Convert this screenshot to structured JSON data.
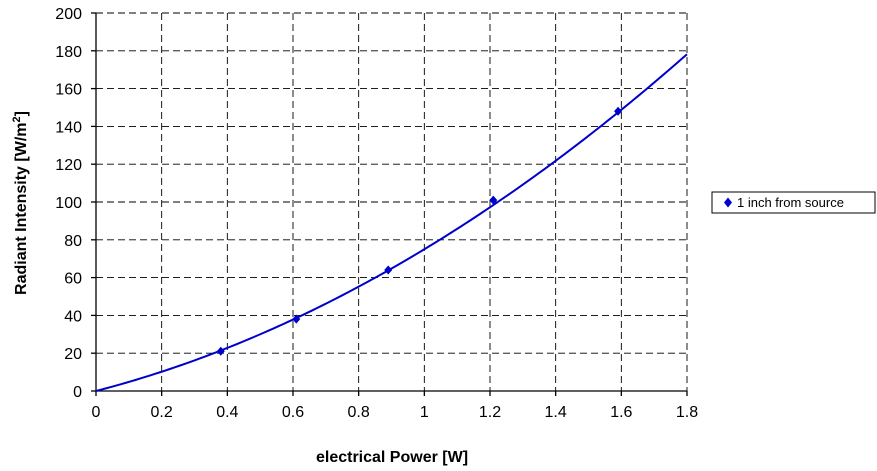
{
  "chart_data": {
    "type": "scatter",
    "xlabel": "electrical Power [W]",
    "ylabel_main": "Radiant Intensity [W/m",
    "ylabel_sup": "2",
    "ylabel_end": "]",
    "xlim": [
      0,
      1.8
    ],
    "ylim": [
      0,
      200
    ],
    "xticks": [
      "0",
      "0.2",
      "0.4",
      "0.6",
      "0.8",
      "1",
      "1.2",
      "1.4",
      "1.6",
      "1.8"
    ],
    "yticks": [
      "0",
      "20",
      "40",
      "60",
      "80",
      "100",
      "120",
      "140",
      "160",
      "180",
      "200"
    ],
    "grid": true,
    "legend_position": "right",
    "series": [
      {
        "name": "1 inch from source",
        "color": "#0000cc",
        "marker": "diamond",
        "x": [
          0.38,
          0.61,
          0.89,
          1.21,
          1.59
        ],
        "y": [
          21,
          38,
          64,
          101,
          148
        ]
      }
    ],
    "trendline": {
      "color": "#0000cc",
      "type": "polynomial",
      "coefficients": [
        0,
        45,
        30
      ]
    }
  }
}
